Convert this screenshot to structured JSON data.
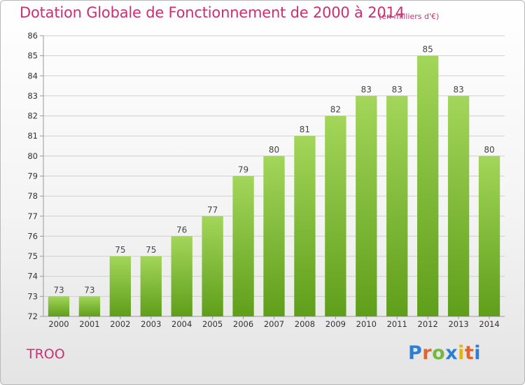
{
  "header": {
    "title": "Dotation Globale de Fonctionnement de 2000 à 2014",
    "units": "(en milliers d'€)"
  },
  "footer": {
    "commune": "TROO",
    "logo_text": "Proxiti"
  },
  "colors": {
    "title": "#cc2f72",
    "bar_top": "#a3d65a",
    "bar_bottom": "#5f9e1a",
    "grid": "#cfcfcf"
  },
  "chart_data": {
    "type": "bar",
    "title": "Dotation Globale de Fonctionnement de 2000 à 2014",
    "subtitle": "(en milliers d'€)",
    "xlabel": "",
    "ylabel": "",
    "categories": [
      "2000",
      "2001",
      "2002",
      "2003",
      "2004",
      "2005",
      "2006",
      "2007",
      "2008",
      "2009",
      "2010",
      "2011",
      "2012",
      "2013",
      "2014"
    ],
    "values": [
      73,
      73,
      75,
      75,
      76,
      77,
      79,
      80,
      81,
      82,
      83,
      83,
      85,
      83,
      80
    ],
    "ylim": [
      72,
      86
    ],
    "yticks": [
      72,
      73,
      74,
      75,
      76,
      77,
      78,
      79,
      80,
      81,
      82,
      83,
      84,
      85,
      86
    ],
    "grid": true,
    "legend": "none"
  }
}
